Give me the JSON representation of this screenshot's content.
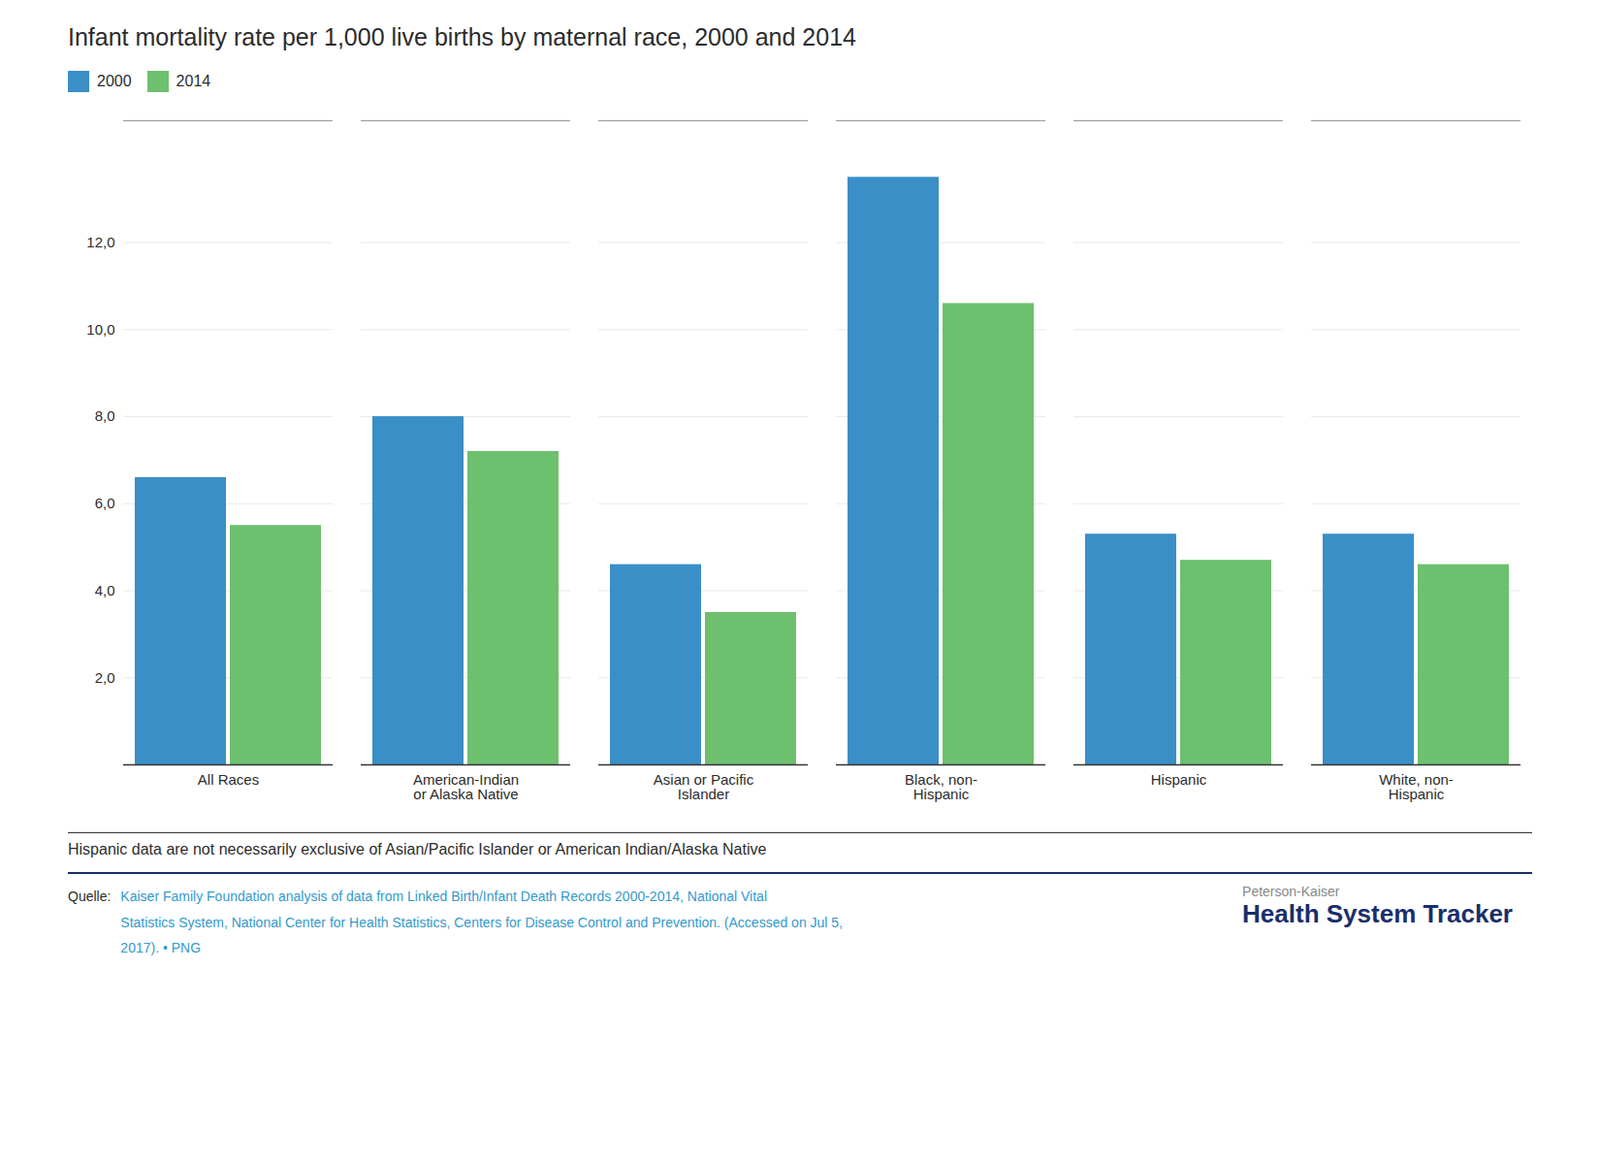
{
  "chart_data": {
    "type": "bar",
    "title": "Infant mortality rate per 1,000 live births by maternal race, 2000 and 2014",
    "categories": [
      "All Races",
      "American-Indian\nor Alaska Native",
      "Asian or Pacific\nIslander",
      "Black, non-\nHispanic",
      "Hispanic",
      "White, non-\nHispanic"
    ],
    "series": [
      {
        "name": "2000",
        "color": "#3a8fc7",
        "values": [
          6.6,
          8.0,
          4.6,
          13.5,
          5.3,
          5.3
        ]
      },
      {
        "name": "2014",
        "color": "#6dc06e",
        "values": [
          5.5,
          7.2,
          3.5,
          10.6,
          4.7,
          4.6
        ]
      }
    ],
    "ylim": [
      0,
      14.8
    ],
    "yticks": [
      {
        "value": 2.0,
        "label": "2,0"
      },
      {
        "value": 4.0,
        "label": "4,0"
      },
      {
        "value": 6.0,
        "label": "6,0"
      },
      {
        "value": 8.0,
        "label": "8,0"
      },
      {
        "value": 10.0,
        "label": "10,0"
      },
      {
        "value": 12.0,
        "label": "12,0"
      }
    ],
    "grid": true,
    "legend": "upper left",
    "note": "Hispanic data are not necessarily exclusive of Asian/Pacific Islander or American Indian/Alaska Native",
    "source_label": "Quelle:",
    "source_lines": [
      "Kaiser Family Foundation analysis of data from Linked Birth/Infant Death Records 2000-2014, National Vital",
      "Statistics System, National Center for Health Statistics, Centers for Disease Control and Prevention. (Accessed on Jul 5,",
      "2017).  •  PNG"
    ],
    "brand": [
      "Peterson-Kaiser",
      "Health System Tracker"
    ]
  }
}
